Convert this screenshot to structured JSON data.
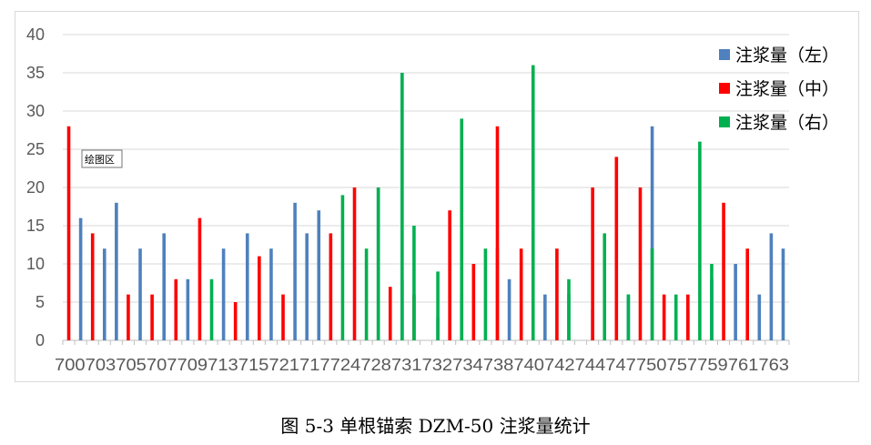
{
  "caption": "图 5-3  单根锚索 DZM-50 注浆量统计",
  "tooltip": "绘图区",
  "chart_data": {
    "type": "bar",
    "ylim": [
      0,
      40
    ],
    "yticks": [
      0,
      5,
      10,
      15,
      20,
      25,
      30,
      35,
      40
    ],
    "grid": true,
    "legend_position": "right",
    "x_tick_labels": [
      "700",
      "703",
      "705",
      "707",
      "709",
      "713",
      "715",
      "721",
      "717",
      "724",
      "728",
      "731",
      "732",
      "734",
      "738",
      "740",
      "742",
      "744",
      "747",
      "750",
      "757",
      "759",
      "761",
      "763"
    ],
    "series": [
      {
        "name": "注浆量（左）",
        "color": "#4e81bd",
        "bars": [
          [
            1,
            16
          ],
          [
            3,
            12
          ],
          [
            4,
            18
          ],
          [
            6,
            12
          ],
          [
            8,
            14
          ],
          [
            10,
            8
          ],
          [
            13,
            12
          ],
          [
            15,
            14
          ],
          [
            17,
            12
          ],
          [
            19,
            18
          ],
          [
            20,
            14
          ],
          [
            21,
            17
          ],
          [
            26,
            20
          ],
          [
            28,
            8
          ],
          [
            31,
            3
          ],
          [
            33,
            6
          ],
          [
            36,
            12
          ],
          [
            37,
            8
          ],
          [
            40,
            6
          ],
          [
            42,
            6
          ],
          [
            44,
            4
          ],
          [
            47,
            6
          ],
          [
            49,
            28
          ],
          [
            52,
            4
          ],
          [
            54,
            8
          ],
          [
            56,
            10
          ],
          [
            58,
            6
          ],
          [
            59,
            14
          ],
          [
            60,
            12
          ]
        ]
      },
      {
        "name": "注浆量（中）",
        "color": "#ff0000",
        "bars": [
          [
            0,
            28
          ],
          [
            2,
            14
          ],
          [
            5,
            6
          ],
          [
            7,
            6
          ],
          [
            9,
            8
          ],
          [
            11,
            16
          ],
          [
            14,
            5
          ],
          [
            16,
            11
          ],
          [
            18,
            6
          ],
          [
            22,
            14
          ],
          [
            24,
            20
          ],
          [
            27,
            7
          ],
          [
            29,
            6
          ],
          [
            32,
            17
          ],
          [
            34,
            10
          ],
          [
            36,
            28
          ],
          [
            38,
            12
          ],
          [
            41,
            12
          ],
          [
            44,
            20
          ],
          [
            46,
            24
          ],
          [
            48,
            20
          ],
          [
            50,
            6
          ],
          [
            52,
            6
          ],
          [
            55,
            18
          ],
          [
            57,
            12
          ]
        ]
      },
      {
        "name": "注浆量（右）",
        "color": "#00b050",
        "bars": [
          [
            12,
            8
          ],
          [
            23,
            19
          ],
          [
            25,
            12
          ],
          [
            26,
            20
          ],
          [
            28,
            35
          ],
          [
            29,
            15
          ],
          [
            31,
            9
          ],
          [
            33,
            29
          ],
          [
            35,
            12
          ],
          [
            39,
            36
          ],
          [
            42,
            8
          ],
          [
            45,
            14
          ],
          [
            47,
            6
          ],
          [
            49,
            12
          ],
          [
            51,
            6
          ],
          [
            53,
            26
          ],
          [
            54,
            10
          ]
        ]
      }
    ]
  }
}
